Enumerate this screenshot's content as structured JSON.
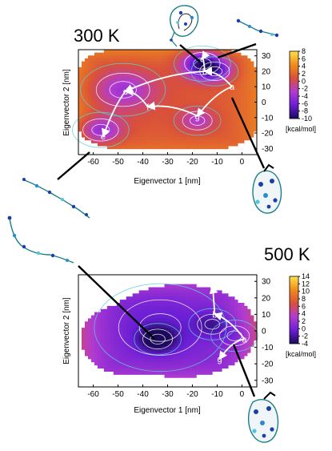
{
  "chart_data": [
    {
      "type": "heatmap",
      "title": "300 K",
      "xlabel": "Eigenvector 1 [nm]",
      "ylabel": "Eigenvector 2 [nm]",
      "xlim": [
        -66,
        6
      ],
      "ylim": [
        -34,
        34
      ],
      "x_ticks": [
        -60,
        -50,
        -40,
        -30,
        -20,
        -10,
        0
      ],
      "y_ticks": [
        -30,
        -20,
        -10,
        0,
        10,
        20,
        30
      ],
      "colorbar": {
        "range": [
          -10,
          8
        ],
        "ticks": [
          8,
          6,
          4,
          2,
          0,
          -2,
          -4,
          -6,
          -8,
          -10
        ],
        "unit": "[kcal/mol]",
        "colors": [
          "#1b0a5a",
          "#6a1ed6",
          "#b23bd0",
          "#d9503a",
          "#f08c1a",
          "#ffe24a"
        ]
      },
      "states": [
        {
          "label": "a",
          "x": -4,
          "y": 10
        },
        {
          "label": "b",
          "x": -15,
          "y": 20
        },
        {
          "label": "c",
          "x": -16,
          "y": 28
        },
        {
          "label": "d",
          "x": -47,
          "y": 7
        },
        {
          "label": "e",
          "x": -56,
          "y": -22
        },
        {
          "label": "f",
          "x": -38,
          "y": -3
        },
        {
          "label": "g",
          "x": -18,
          "y": -9
        }
      ],
      "basins": [
        {
          "x": -16,
          "y": 25,
          "depth": -10,
          "spread": 6
        },
        {
          "x": -11,
          "y": 20,
          "depth": -6,
          "spread": 5
        },
        {
          "x": -48,
          "y": 8,
          "depth": -5,
          "spread": 9
        },
        {
          "x": -57,
          "y": -18,
          "depth": -6,
          "spread": 6
        },
        {
          "x": -18,
          "y": -12,
          "depth": -4,
          "spread": 5
        }
      ]
    },
    {
      "type": "heatmap",
      "title": "500 K",
      "xlabel": "Eigenvector 1 [nm]",
      "ylabel": "Eigenvector 2 [nm]",
      "xlim": [
        -66,
        6
      ],
      "ylim": [
        -34,
        34
      ],
      "x_ticks": [
        -60,
        -50,
        -40,
        -30,
        -20,
        -10,
        0
      ],
      "y_ticks": [
        -30,
        -20,
        -10,
        0,
        10,
        20,
        30
      ],
      "colorbar": {
        "range": [
          -4,
          14
        ],
        "ticks": [
          14,
          12,
          10,
          8,
          6,
          4,
          2,
          0,
          -2,
          -4
        ],
        "unit": "[kcal/mol]",
        "colors": [
          "#1b0a5a",
          "#6a1ed6",
          "#b23bd0",
          "#d9503a",
          "#f08c1a",
          "#ffe24a"
        ]
      },
      "states": [
        {
          "label": "a",
          "x": 1,
          "y": -5
        },
        {
          "label": "b",
          "x": -11,
          "y": 10
        },
        {
          "label": "c",
          "x": -12,
          "y": 27
        },
        {
          "label": "g",
          "x": -9,
          "y": -17
        }
      ],
      "basins": [
        {
          "x": -34,
          "y": -5,
          "depth": -4,
          "spread": 5
        },
        {
          "x": -12,
          "y": 4,
          "depth": -2,
          "spread": 5
        },
        {
          "x": -33,
          "y": 2,
          "depth": -1,
          "spread": 14
        },
        {
          "x": -3,
          "y": -3,
          "depth": -1,
          "spread": 5
        }
      ]
    }
  ]
}
